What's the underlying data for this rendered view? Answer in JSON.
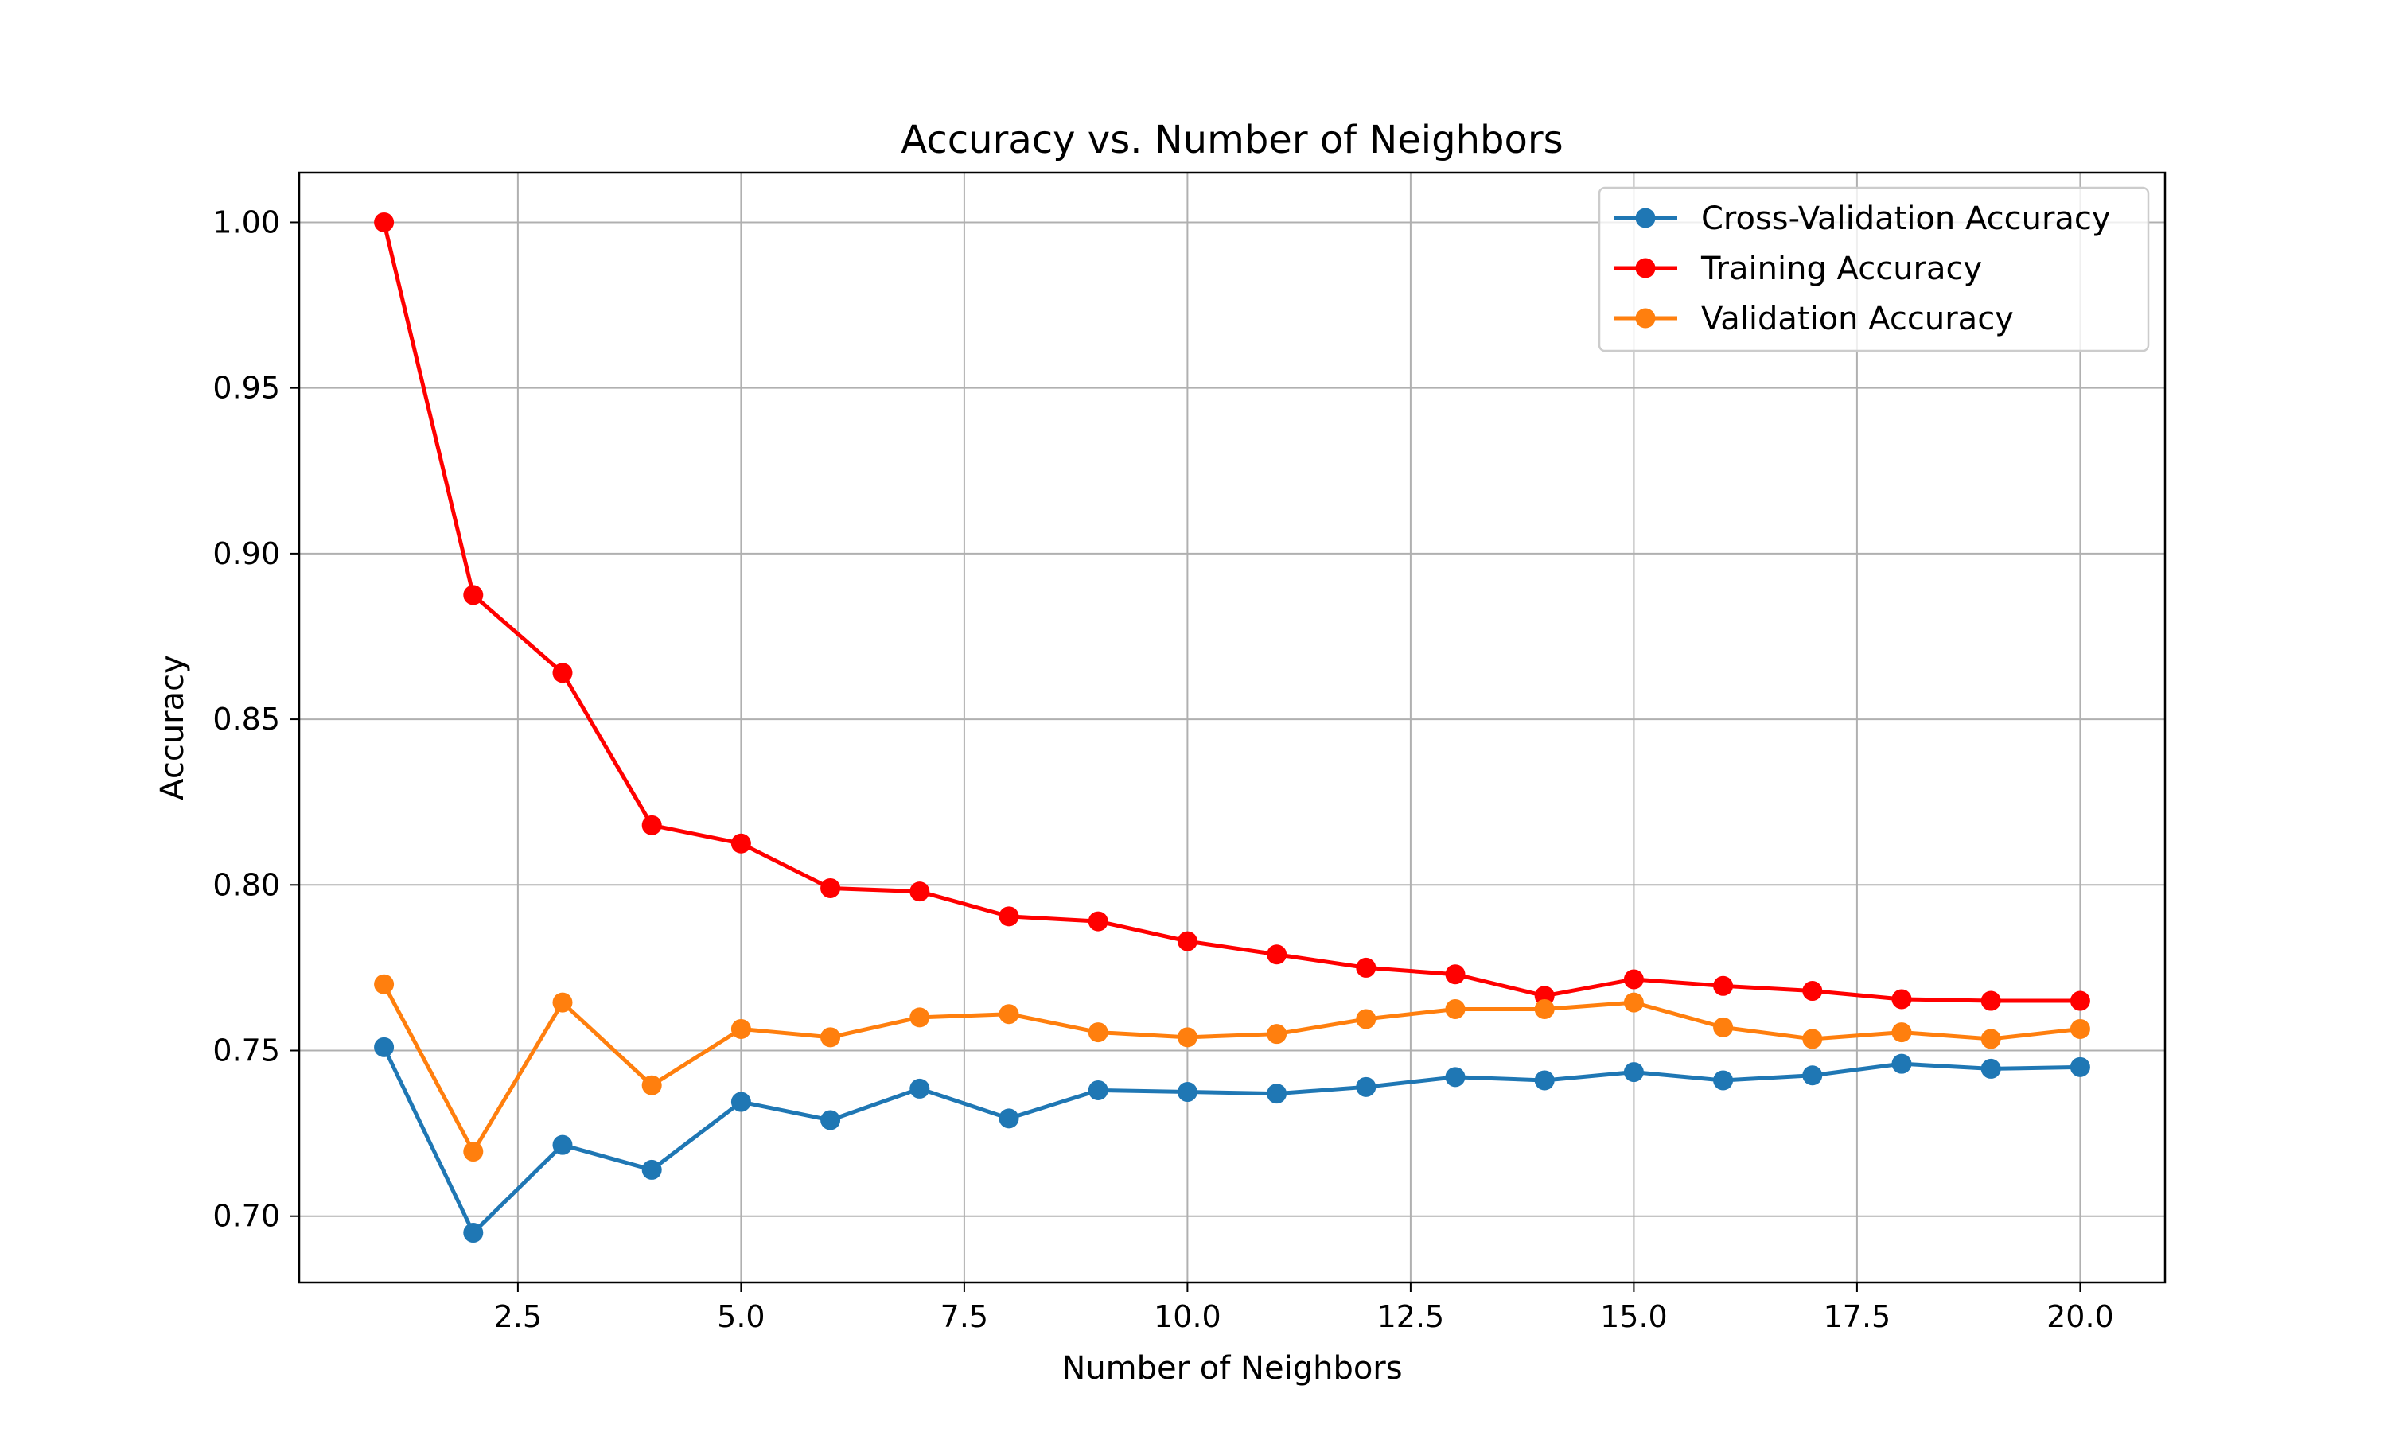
{
  "chart_data": {
    "type": "line",
    "title": "Accuracy vs. Number of Neighbors",
    "xlabel": "Number of Neighbors",
    "ylabel": "Accuracy",
    "xlim": [
      0.05,
      20.95
    ],
    "ylim": [
      0.68,
      1.015
    ],
    "xticks": [
      2.5,
      5.0,
      7.5,
      10.0,
      12.5,
      15.0,
      17.5,
      20.0
    ],
    "xtick_labels": [
      "2.5",
      "5.0",
      "7.5",
      "10.0",
      "12.5",
      "15.0",
      "17.5",
      "20.0"
    ],
    "yticks": [
      0.7,
      0.75,
      0.8,
      0.85,
      0.9,
      0.95,
      1.0
    ],
    "ytick_labels": [
      "0.70",
      "0.75",
      "0.80",
      "0.85",
      "0.90",
      "0.95",
      "1.00"
    ],
    "grid": true,
    "legend_position": "top-right",
    "x": [
      1,
      2,
      3,
      4,
      5,
      6,
      7,
      8,
      9,
      10,
      11,
      12,
      13,
      14,
      15,
      16,
      17,
      18,
      19,
      20
    ],
    "series": [
      {
        "name": "Cross-Validation Accuracy",
        "color": "#1f77b4",
        "values": [
          0.751,
          0.695,
          0.7215,
          0.714,
          0.7345,
          0.729,
          0.7385,
          0.7295,
          0.738,
          0.7375,
          0.737,
          0.739,
          0.742,
          0.741,
          0.7435,
          0.741,
          0.7425,
          0.746,
          0.7445,
          0.745
        ]
      },
      {
        "name": "Training Accuracy",
        "color": "#ff0000",
        "values": [
          1.0,
          0.8875,
          0.864,
          0.818,
          0.8125,
          0.799,
          0.798,
          0.7905,
          0.789,
          0.783,
          0.779,
          0.775,
          0.773,
          0.7665,
          0.7715,
          0.7695,
          0.768,
          0.7655,
          0.765,
          0.765
        ]
      },
      {
        "name": "Validation Accuracy",
        "color": "#ff7f0e",
        "values": [
          0.77,
          0.7195,
          0.7645,
          0.7395,
          0.7565,
          0.754,
          0.76,
          0.761,
          0.7555,
          0.754,
          0.755,
          0.7595,
          0.7625,
          0.7625,
          0.7645,
          0.757,
          0.7535,
          0.7555,
          0.7535,
          0.7565
        ]
      }
    ]
  }
}
